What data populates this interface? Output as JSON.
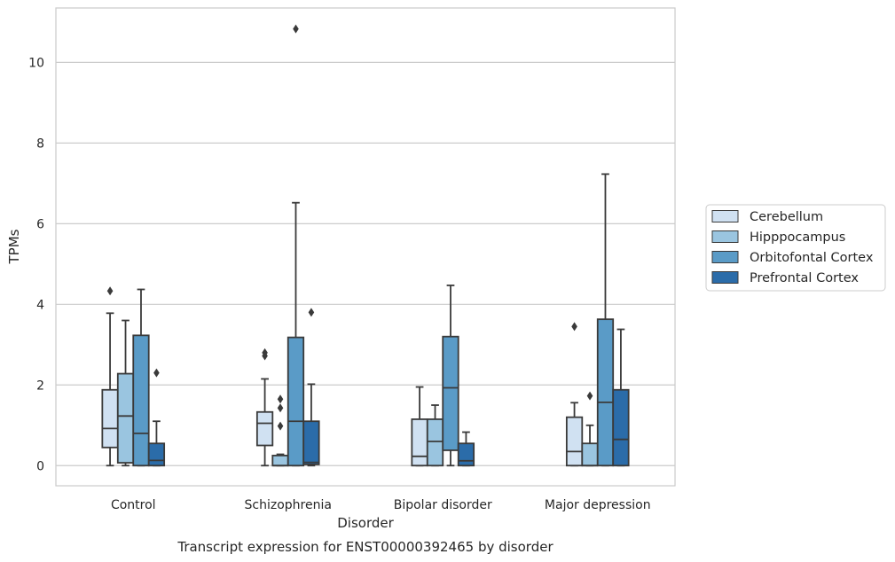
{
  "chart_data": {
    "type": "box",
    "title": "Transcript expression for ENST00000392465 by disorder",
    "xlabel": "Disorder",
    "ylabel": "TPMs",
    "ylim": [
      -0.5,
      11.35
    ],
    "yticks": [
      0,
      2,
      4,
      6,
      8,
      10
    ],
    "grid": "horizontal",
    "legend_position": "right",
    "categories": [
      "Control",
      "Schizophrenia",
      "Bipolar disorder",
      "Major depression"
    ],
    "series": [
      {
        "name": "Cerebellum",
        "color": "#d0e1f2",
        "boxes": [
          {
            "whisker_low": 0.0,
            "q1": 0.45,
            "median": 0.92,
            "q3": 1.88,
            "whisker_high": 3.78,
            "outliers": [
              4.33
            ]
          },
          {
            "whisker_low": 0.0,
            "q1": 0.5,
            "median": 1.05,
            "q3": 1.33,
            "whisker_high": 2.15,
            "outliers": [
              2.72,
              2.8
            ]
          },
          {
            "whisker_low": 0.0,
            "q1": 0.0,
            "median": 0.23,
            "q3": 1.15,
            "whisker_high": 1.95,
            "outliers": []
          },
          {
            "whisker_low": 0.0,
            "q1": 0.0,
            "median": 0.35,
            "q3": 1.2,
            "whisker_high": 1.56,
            "outliers": [
              3.45
            ]
          }
        ]
      },
      {
        "name": "Hipppocampus",
        "color": "#9ac5e0",
        "boxes": [
          {
            "whisker_low": 0.0,
            "q1": 0.07,
            "median": 1.23,
            "q3": 2.28,
            "whisker_high": 3.6,
            "outliers": []
          },
          {
            "whisker_low": 0.0,
            "q1": 0.0,
            "median": 0.0,
            "q3": 0.25,
            "whisker_high": 0.28,
            "outliers": [
              0.98,
              1.43,
              1.65
            ]
          },
          {
            "whisker_low": 0.0,
            "q1": 0.0,
            "median": 0.6,
            "q3": 1.15,
            "whisker_high": 1.5,
            "outliers": []
          },
          {
            "whisker_low": 0.0,
            "q1": 0.0,
            "median": 0.0,
            "q3": 0.55,
            "whisker_high": 1.0,
            "outliers": [
              1.73
            ]
          }
        ]
      },
      {
        "name": "Orbitofontal Cortex",
        "color": "#5a9bc7",
        "boxes": [
          {
            "whisker_low": 0.0,
            "q1": 0.0,
            "median": 0.8,
            "q3": 3.23,
            "whisker_high": 4.37,
            "outliers": []
          },
          {
            "whisker_low": 0.0,
            "q1": 0.0,
            "median": 1.1,
            "q3": 3.18,
            "whisker_high": 6.52,
            "outliers": [
              10.83
            ]
          },
          {
            "whisker_low": 0.0,
            "q1": 0.38,
            "median": 1.93,
            "q3": 3.2,
            "whisker_high": 4.47,
            "outliers": []
          },
          {
            "whisker_low": 0.0,
            "q1": 0.0,
            "median": 1.57,
            "q3": 3.63,
            "whisker_high": 7.23,
            "outliers": []
          }
        ]
      },
      {
        "name": "Prefrontal Cortex",
        "color": "#2b6ca9",
        "boxes": [
          {
            "whisker_low": 0.0,
            "q1": 0.0,
            "median": 0.13,
            "q3": 0.55,
            "whisker_high": 1.1,
            "outliers": [
              2.3
            ]
          },
          {
            "whisker_low": 0.0,
            "q1": 0.03,
            "median": 0.08,
            "q3": 1.1,
            "whisker_high": 2.02,
            "outliers": [
              3.8
            ]
          },
          {
            "whisker_low": 0.0,
            "q1": 0.0,
            "median": 0.12,
            "q3": 0.55,
            "whisker_high": 0.83,
            "outliers": []
          },
          {
            "whisker_low": 0.0,
            "q1": 0.0,
            "median": 0.65,
            "q3": 1.88,
            "whisker_high": 3.38,
            "outliers": []
          }
        ]
      }
    ]
  }
}
